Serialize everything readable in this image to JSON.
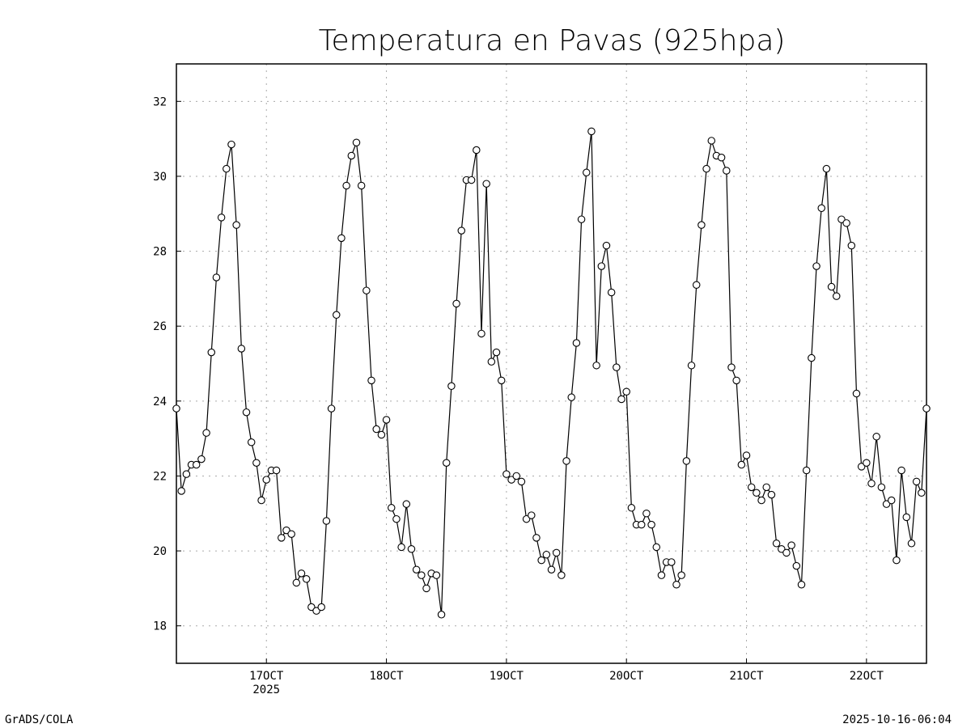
{
  "chart_data": {
    "type": "line",
    "title": "Temperatura en Pavas (925hpa)",
    "xlabel": "",
    "ylabel": "",
    "x_units": "hours since 16 Oct 2025 06Z (hourly)",
    "xlim": [
      0,
      150
    ],
    "ylim": [
      17,
      33
    ],
    "grid": true,
    "x_ticks": [
      {
        "value": 18,
        "label": "17OCT",
        "sublabel": "2025"
      },
      {
        "value": 42,
        "label": "18OCT"
      },
      {
        "value": 66,
        "label": "19OCT"
      },
      {
        "value": 90,
        "label": "20OCT"
      },
      {
        "value": 114,
        "label": "21OCT"
      },
      {
        "value": 138,
        "label": "22OCT"
      }
    ],
    "y_ticks": [
      18,
      20,
      22,
      24,
      26,
      28,
      30,
      32
    ],
    "series": [
      {
        "name": "Temperatura",
        "marker": "open-circle",
        "values": [
          23.8,
          21.6,
          22.05,
          22.3,
          22.3,
          22.45,
          23.15,
          25.3,
          27.3,
          28.9,
          30.2,
          30.85,
          28.7,
          25.4,
          23.7,
          22.9,
          22.35,
          21.35,
          21.9,
          22.15,
          22.15,
          20.35,
          20.55,
          20.45,
          19.15,
          19.4,
          19.25,
          18.5,
          18.4,
          18.5,
          20.8,
          23.8,
          26.3,
          28.35,
          29.75,
          30.55,
          30.9,
          29.75,
          26.95,
          24.55,
          23.25,
          23.1,
          23.5,
          21.15,
          20.85,
          20.1,
          21.25,
          20.05,
          19.5,
          19.35,
          19.0,
          19.4,
          19.35,
          18.3,
          22.35,
          24.4,
          26.6,
          28.55,
          29.9,
          29.9,
          30.7,
          25.8,
          29.8,
          25.05,
          25.3,
          24.55,
          22.05,
          21.9,
          22.0,
          21.85,
          20.85,
          20.95,
          20.35,
          19.75,
          19.9,
          19.5,
          19.95,
          19.35,
          22.4,
          24.1,
          25.55,
          28.85,
          30.1,
          31.2,
          24.95,
          27.6,
          28.15,
          26.9,
          24.9,
          24.05,
          24.25,
          21.15,
          20.7,
          20.7,
          21.0,
          20.7,
          20.1,
          19.35,
          19.7,
          19.7,
          19.1,
          19.35,
          22.4,
          24.95,
          27.1,
          28.7,
          30.2,
          30.95,
          30.55,
          30.5,
          30.15,
          24.9,
          24.55,
          22.3,
          22.55,
          21.7,
          21.55,
          21.35,
          21.7,
          21.5,
          20.2,
          20.05,
          19.95,
          20.15,
          19.6,
          19.1,
          22.15,
          25.15,
          27.6,
          29.15,
          30.2,
          27.05,
          26.8,
          28.85,
          28.75,
          28.15,
          24.2,
          22.25,
          22.35,
          21.8,
          23.05,
          21.7,
          21.25,
          21.35,
          19.75,
          22.15,
          20.9,
          20.2,
          21.85,
          21.55,
          23.8
        ]
      }
    ]
  },
  "footer": {
    "left": "GrADS/COLA",
    "right": "2025-10-16-06:04"
  }
}
